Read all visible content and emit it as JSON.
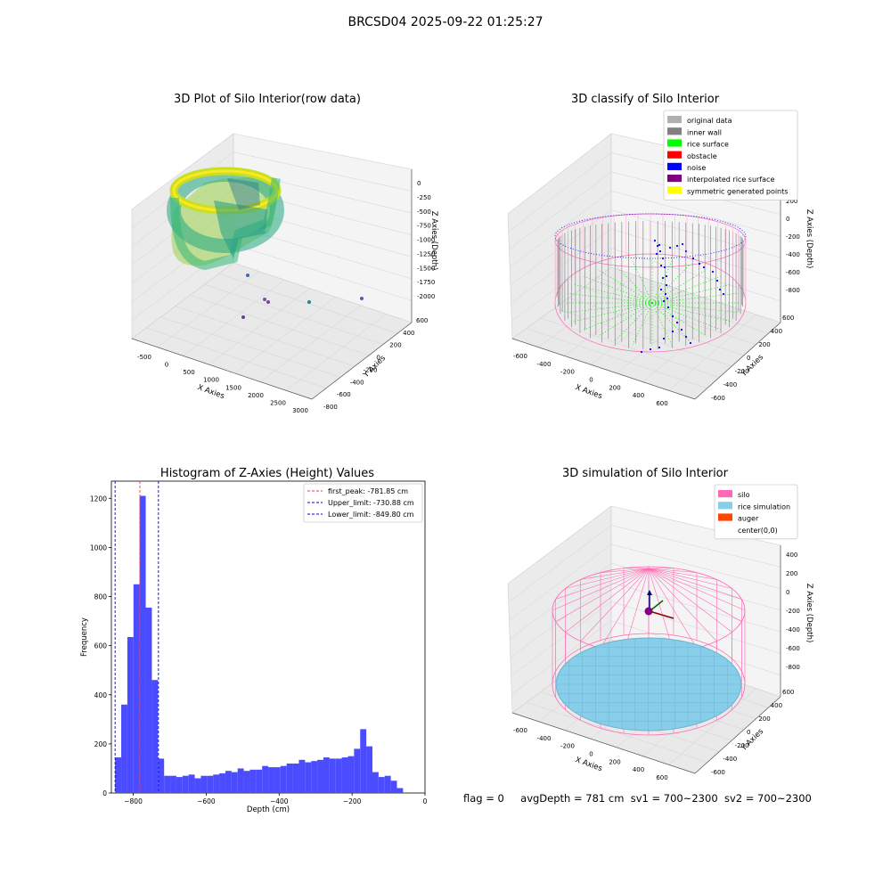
{
  "suptitle": "BRCSD04 2025-09-22 01:25:27",
  "status": {
    "flag": "flag = 0",
    "avg_depth": "avgDepth = 781 cm",
    "sv1": "sv1 = 700~2300",
    "sv2": "sv2 = 700~2300"
  },
  "chart_data": [
    {
      "type": "scatter",
      "title": "3D Plot of Silo Interior(row data)",
      "xlabel": "X Axies",
      "ylabel": "Y Axies",
      "zlabel": "Z Axies (Depth)",
      "x_ticks": [
        "-500",
        "0",
        "500",
        "1000",
        "1500",
        "2000",
        "2500",
        "3000"
      ],
      "y_ticks": [
        "-800",
        "-600",
        "-400",
        "-200",
        "0",
        "200",
        "400",
        "600"
      ],
      "z_ticks": [
        "-2000",
        "-1750",
        "-1500",
        "-1250",
        "-1000",
        "-750",
        "-500",
        "-250",
        "0"
      ],
      "colormap": "viridis",
      "grid": true
    },
    {
      "type": "scatter",
      "title": "3D classify of Silo Interior",
      "xlabel": "X Axies",
      "ylabel": "Y Axies",
      "zlabel": "Z Axies (Depth)",
      "x_ticks": [
        "-600",
        "-400",
        "-200",
        "0",
        "200",
        "400",
        "600"
      ],
      "y_ticks": [
        "-600",
        "-400",
        "-200",
        "0",
        "200",
        "400",
        "600"
      ],
      "z_ticks": [
        "-800",
        "-600",
        "-400",
        "-200",
        "0",
        "200",
        "400"
      ],
      "legend_position": "top-right",
      "legend": [
        {
          "label": "original data",
          "color": "#b0b0b0"
        },
        {
          "label": "inner wall",
          "color": "#808080"
        },
        {
          "label": "rice surface",
          "color": "#00ff00"
        },
        {
          "label": "obstacle",
          "color": "#ff0000"
        },
        {
          "label": "noise",
          "color": "#0000ff"
        },
        {
          "label": "interpolated rice surface",
          "color": "#800080"
        },
        {
          "label": "symmetric generated points",
          "color": "#ffff00"
        }
      ],
      "grid": true
    },
    {
      "type": "bar",
      "title": "Histogram of Z-Axies (Height) Values",
      "xlabel": "Depth (cm)",
      "ylabel": "Frequency",
      "xlim": [
        -860,
        0
      ],
      "ylim": [
        0,
        1270
      ],
      "x_ticks": [
        -800,
        -600,
        -400,
        -200,
        0
      ],
      "x_tick_labels": [
        "−800",
        "−600",
        "−400",
        "−200",
        "0"
      ],
      "y_ticks": [
        0,
        200,
        400,
        600,
        800,
        1000,
        1200
      ],
      "bin_start": -849.8,
      "bin_width": 16.8,
      "values": [
        145,
        360,
        635,
        850,
        1210,
        755,
        460,
        140,
        70,
        70,
        65,
        70,
        75,
        60,
        70,
        70,
        75,
        80,
        90,
        85,
        100,
        90,
        95,
        95,
        110,
        105,
        105,
        110,
        120,
        120,
        135,
        125,
        130,
        135,
        145,
        140,
        140,
        145,
        150,
        180,
        260,
        190,
        85,
        65,
        70,
        50,
        20
      ],
      "bar_color": "#4b4bff",
      "vlines": [
        {
          "label": "first_peak: -781.85 cm",
          "x": -781.85,
          "color": "#ff3333"
        },
        {
          "label": "Upper_limit: -730.88 cm",
          "x": -730.88,
          "color": "#0000ff"
        },
        {
          "label": "Lower_limit: -849.80 cm",
          "x": -849.8,
          "color": "#0000ff"
        }
      ],
      "legend_position": "top-right"
    },
    {
      "type": "scatter",
      "title": "3D simulation of Silo Interior",
      "xlabel": "X Axies",
      "ylabel": "Y Axies",
      "zlabel": "Z Axies (Depth)",
      "x_ticks": [
        "-600",
        "-400",
        "-200",
        "0",
        "200",
        "400",
        "600"
      ],
      "y_ticks": [
        "-600",
        "-400",
        "-200",
        "0",
        "200",
        "400",
        "600"
      ],
      "z_ticks": [
        "-800",
        "-600",
        "-400",
        "-200",
        "0",
        "200",
        "400"
      ],
      "legend_position": "top-right",
      "legend": [
        {
          "label": "silo",
          "color": "#ff69b4"
        },
        {
          "label": "rice simulation",
          "color": "#87ceeb"
        },
        {
          "label": "auger",
          "color": "#ff4500"
        },
        {
          "label": "center(0,0)",
          "color": "#ffffff"
        }
      ],
      "grid": true
    }
  ]
}
